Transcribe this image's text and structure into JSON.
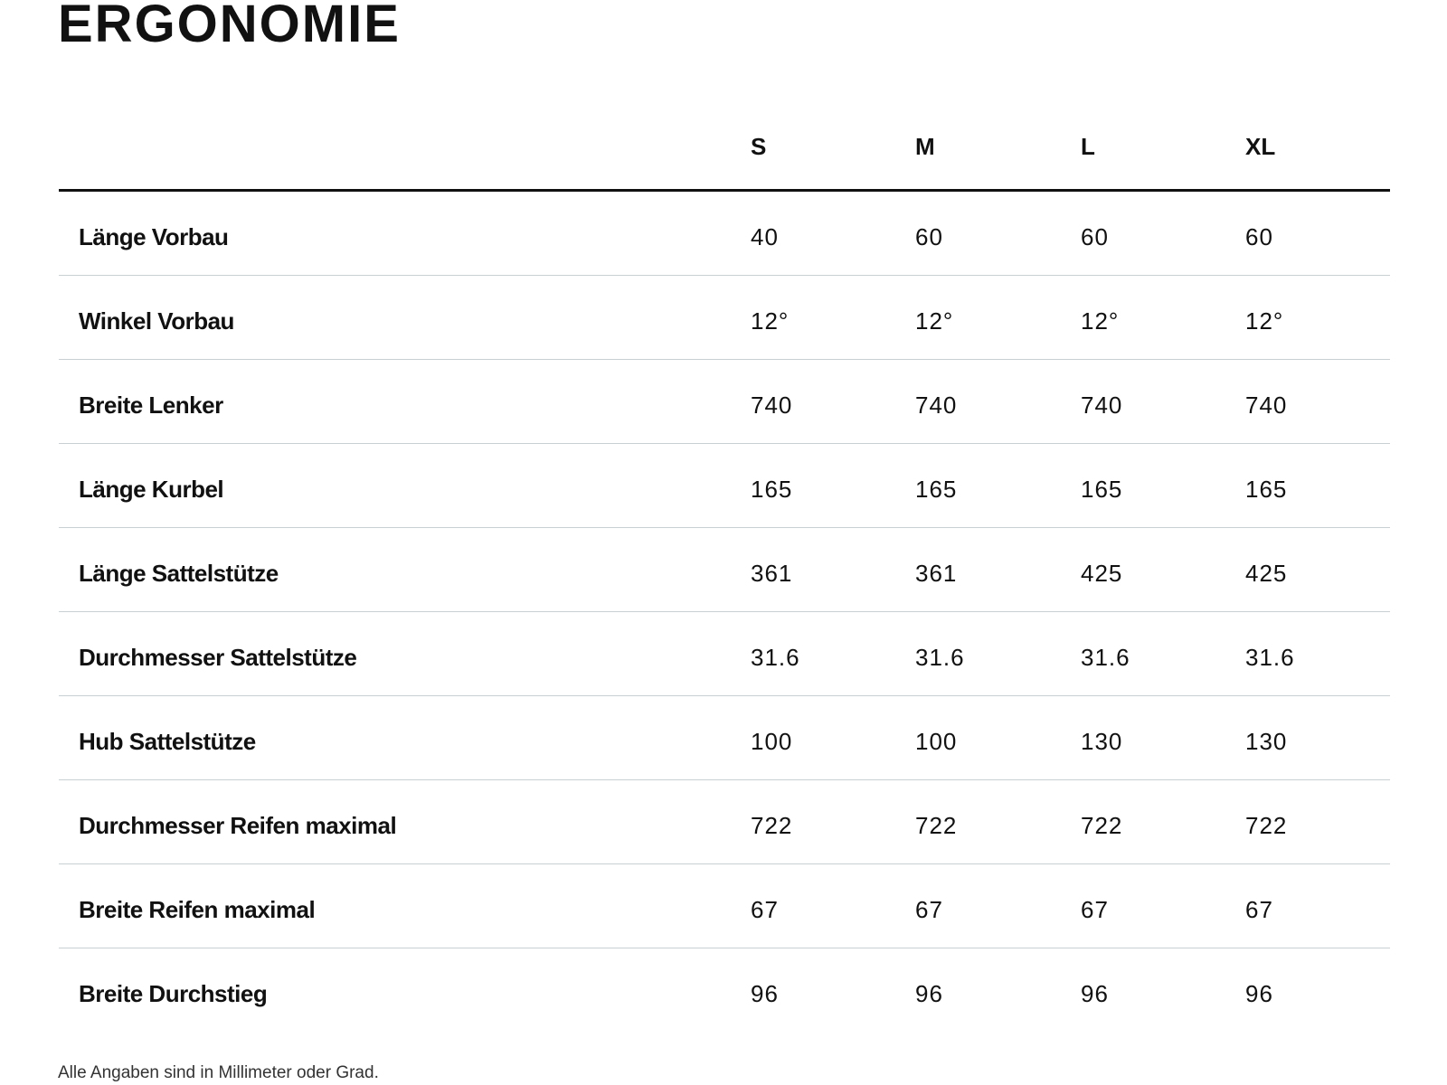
{
  "header": {
    "title": "ERGONOMIE"
  },
  "table": {
    "columns": [
      "S",
      "M",
      "L",
      "XL"
    ],
    "rows": [
      [
        "Länge Vorbau",
        "40",
        "60",
        "60",
        "60"
      ],
      [
        "Winkel Vorbau",
        "12°",
        "12°",
        "12°",
        "12°"
      ],
      [
        "Breite Lenker",
        "740",
        "740",
        "740",
        "740"
      ],
      [
        "Länge Kurbel",
        "165",
        "165",
        "165",
        "165"
      ],
      [
        "Länge Sattelstütze",
        "361",
        "361",
        "425",
        "425"
      ],
      [
        "Durchmesser Sattelstütze",
        "31.6",
        "31.6",
        "31.6",
        "31.6"
      ],
      [
        "Hub Sattelstütze",
        "100",
        "100",
        "130",
        "130"
      ],
      [
        "Durchmesser Reifen maximal",
        "722",
        "722",
        "722",
        "722"
      ],
      [
        "Breite Reifen maximal",
        "67",
        "67",
        "67",
        "67"
      ],
      [
        "Breite Durchstieg",
        "96",
        "96",
        "96",
        "96"
      ]
    ]
  },
  "footnote": "Alle Angaben sind in Millimeter oder Grad."
}
